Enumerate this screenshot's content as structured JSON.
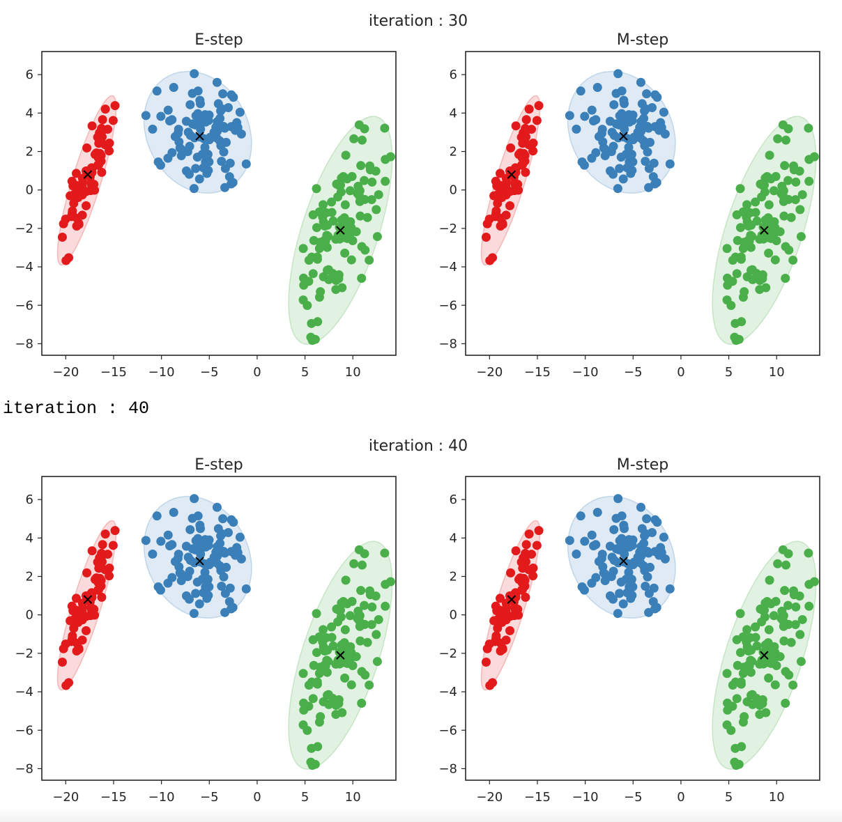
{
  "stdout_line": "iteration : 40",
  "colors": {
    "cluster_red": "#e31a1c",
    "cluster_blue": "#3a7fb8",
    "cluster_green": "#4aaf4a",
    "centroid_marker": "#000000"
  },
  "chart_data": [
    {
      "type": "scatter",
      "suptitle": "iteration : 30",
      "title": "E-step",
      "xlim": [
        -22.5,
        14.5
      ],
      "ylim": [
        -8.6,
        7.2
      ],
      "xticks": [
        -20,
        -15,
        -10,
        -5,
        0,
        5,
        10
      ],
      "yticks": [
        -8,
        -6,
        -4,
        -2,
        0,
        2,
        4,
        6
      ],
      "xticklabels": [
        "−20",
        "−15",
        "−10",
        "−5",
        "0",
        "5",
        "10"
      ],
      "yticklabels": [
        "−8",
        "−6",
        "−4",
        "−2",
        "0",
        "2",
        "4",
        "6"
      ],
      "grid": false,
      "centroid_marker": "x",
      "clusters": [
        {
          "color": "#e31a1c",
          "centroid": [
            -17.7,
            0.8
          ],
          "ellipse": {
            "cx": -17.8,
            "cy": 0.5,
            "rx": 1.5,
            "ry": 4.6,
            "rot": 17
          }
        },
        {
          "color": "#3a7fb8",
          "centroid": [
            -6.0,
            2.8
          ],
          "ellipse": {
            "cx": -6.2,
            "cy": 3.0,
            "rx": 5.3,
            "ry": 3.3,
            "rot": -28
          }
        },
        {
          "color": "#4aaf4a",
          "centroid": [
            8.7,
            -2.1
          ],
          "ellipse": {
            "cx": 8.7,
            "cy": -2.1,
            "rx": 4.0,
            "ry": 6.2,
            "rot": 18
          }
        }
      ]
    },
    {
      "type": "scatter",
      "suptitle": "iteration : 30",
      "title": "M-step",
      "xlim": [
        -22.5,
        14.5
      ],
      "ylim": [
        -8.6,
        7.2
      ],
      "xticks": [
        -20,
        -15,
        -10,
        -5,
        0,
        5,
        10
      ],
      "yticks": [
        -8,
        -6,
        -4,
        -2,
        0,
        2,
        4,
        6
      ],
      "xticklabels": [
        "−20",
        "−15",
        "−10",
        "−5",
        "0",
        "5",
        "10"
      ],
      "yticklabels": [
        "−8",
        "−6",
        "−4",
        "−2",
        "0",
        "2",
        "4",
        "6"
      ],
      "grid": false,
      "centroid_marker": "x",
      "clusters": [
        {
          "color": "#e31a1c",
          "centroid": [
            -17.7,
            0.8
          ],
          "ellipse": {
            "cx": -17.8,
            "cy": 0.5,
            "rx": 1.5,
            "ry": 4.6,
            "rot": 17
          }
        },
        {
          "color": "#3a7fb8",
          "centroid": [
            -6.0,
            2.8
          ],
          "ellipse": {
            "cx": -6.2,
            "cy": 3.0,
            "rx": 5.3,
            "ry": 3.3,
            "rot": -28
          }
        },
        {
          "color": "#4aaf4a",
          "centroid": [
            8.7,
            -2.1
          ],
          "ellipse": {
            "cx": 8.7,
            "cy": -2.1,
            "rx": 4.0,
            "ry": 6.2,
            "rot": 18
          }
        }
      ]
    },
    {
      "type": "scatter",
      "suptitle": "iteration : 40",
      "title": "E-step",
      "xlim": [
        -22.5,
        14.5
      ],
      "ylim": [
        -8.6,
        7.2
      ],
      "xticks": [
        -20,
        -15,
        -10,
        -5,
        0,
        5,
        10
      ],
      "yticks": [
        -8,
        -6,
        -4,
        -2,
        0,
        2,
        4,
        6
      ],
      "xticklabels": [
        "−20",
        "−15",
        "−10",
        "−5",
        "0",
        "5",
        "10"
      ],
      "yticklabels": [
        "−8",
        "−6",
        "−4",
        "−2",
        "0",
        "2",
        "4",
        "6"
      ],
      "grid": false,
      "centroid_marker": "x",
      "clusters": [
        {
          "color": "#e31a1c",
          "centroid": [
            -17.7,
            0.8
          ],
          "ellipse": {
            "cx": -17.8,
            "cy": 0.5,
            "rx": 1.5,
            "ry": 4.6,
            "rot": 17
          }
        },
        {
          "color": "#3a7fb8",
          "centroid": [
            -6.0,
            2.8
          ],
          "ellipse": {
            "cx": -6.2,
            "cy": 3.0,
            "rx": 5.3,
            "ry": 3.3,
            "rot": -28
          }
        },
        {
          "color": "#4aaf4a",
          "centroid": [
            8.7,
            -2.1
          ],
          "ellipse": {
            "cx": 8.7,
            "cy": -2.1,
            "rx": 4.0,
            "ry": 6.2,
            "rot": 18
          }
        }
      ]
    },
    {
      "type": "scatter",
      "suptitle": "iteration : 40",
      "title": "M-step",
      "xlim": [
        -22.5,
        14.5
      ],
      "ylim": [
        -8.6,
        7.2
      ],
      "xticks": [
        -20,
        -15,
        -10,
        -5,
        0,
        5,
        10
      ],
      "yticks": [
        -8,
        -6,
        -4,
        -2,
        0,
        2,
        4,
        6
      ],
      "xticklabels": [
        "−20",
        "−15",
        "−10",
        "−5",
        "0",
        "5",
        "10"
      ],
      "yticklabels": [
        "−8",
        "−6",
        "−4",
        "−2",
        "0",
        "2",
        "4",
        "6"
      ],
      "grid": false,
      "centroid_marker": "x",
      "clusters": [
        {
          "color": "#e31a1c",
          "centroid": [
            -17.7,
            0.8
          ],
          "ellipse": {
            "cx": -17.8,
            "cy": 0.5,
            "rx": 1.5,
            "ry": 4.6,
            "rot": 17
          }
        },
        {
          "color": "#3a7fb8",
          "centroid": [
            -6.0,
            2.8
          ],
          "ellipse": {
            "cx": -6.2,
            "cy": 3.0,
            "rx": 5.3,
            "ry": 3.3,
            "rot": -28
          }
        },
        {
          "color": "#4aaf4a",
          "centroid": [
            8.7,
            -2.1
          ],
          "ellipse": {
            "cx": 8.7,
            "cy": -2.1,
            "rx": 4.0,
            "ry": 6.2,
            "rot": 18
          }
        }
      ]
    }
  ]
}
